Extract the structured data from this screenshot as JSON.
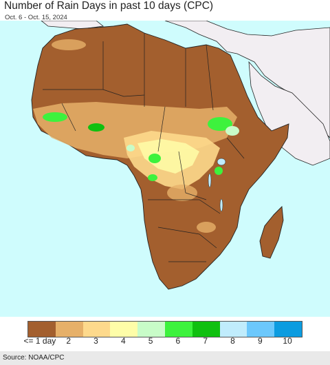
{
  "title": "Number of Rain Days in past 10 days (CPC)",
  "subtitle": "Oct. 6 - Oct. 15, 2024",
  "source": "Source: NOAA/CPC",
  "legend": {
    "bins": [
      {
        "label": "<= 1 day",
        "color": "#a35f2e"
      },
      {
        "label": "2",
        "color": "#e6b069"
      },
      {
        "label": "3",
        "color": "#fdd98c"
      },
      {
        "label": "4",
        "color": "#fefda8"
      },
      {
        "label": "5",
        "color": "#c8fcc8"
      },
      {
        "label": "6",
        "color": "#3df23d"
      },
      {
        "label": "7",
        "color": "#10c010"
      },
      {
        "label": "8",
        "color": "#c0ecfc"
      },
      {
        "label": "9",
        "color": "#6cc8fc"
      },
      {
        "label": "10",
        "color": "#0c9ce0"
      }
    ]
  },
  "colors": {
    "ocean": "#cffcfd",
    "land_outside": "#f2eef2",
    "dry": "#a35f2e",
    "border": "#222222"
  }
}
